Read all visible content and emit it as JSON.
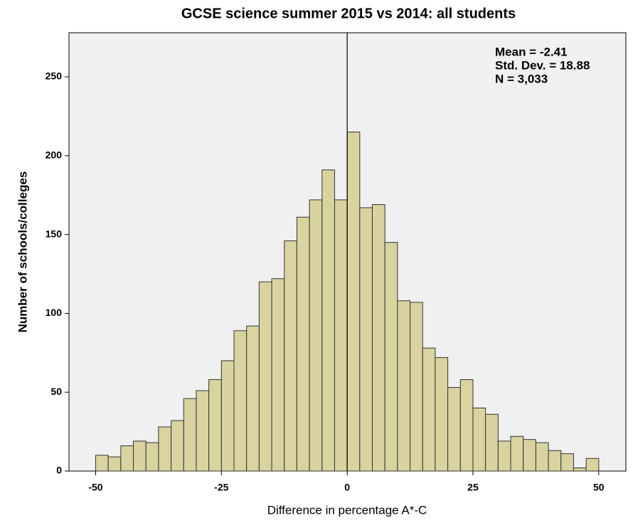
{
  "chart_data": {
    "type": "histogram",
    "title": "GCSE science summer 2015 vs 2014: all students",
    "x_label": "Difference in percentage A*-C",
    "y_label": "Number of schools/colleges",
    "annotations": [
      "Mean = -2.41",
      "Std. Dev. = 18.88",
      "N = 3,033"
    ],
    "bins": [
      -50,
      -47.5,
      -45,
      -42.5,
      -40,
      -37.5,
      -35,
      -32.5,
      -30,
      -27.5,
      -25,
      -22.5,
      -20,
      -17.5,
      -15,
      -12.5,
      -10,
      -7.5,
      -5,
      -2.5,
      0,
      2.5,
      5,
      7.5,
      10,
      12.5,
      15,
      17.5,
      20,
      22.5,
      25,
      27.5,
      30,
      32.5,
      35,
      37.5,
      40,
      42.5,
      45,
      47.5,
      50
    ],
    "values": [
      10,
      9,
      16,
      19,
      18,
      28,
      32,
      46,
      51,
      58,
      70,
      89,
      92,
      120,
      122,
      146,
      161,
      172,
      191,
      172,
      215,
      167,
      169,
      145,
      108,
      107,
      78,
      72,
      53,
      58,
      40,
      36,
      19,
      22,
      20,
      18,
      13,
      11,
      2,
      8
    ],
    "color": "#d9d3a0",
    "background": "#f0f0f0",
    "reference_line": 0,
    "xlim": [
      -55.3,
      55.4
    ],
    "xticks": [
      -50,
      -25,
      0,
      25,
      50
    ],
    "ylim": [
      0,
      278
    ],
    "yticks": [
      0,
      50,
      100,
      150,
      200,
      250
    ]
  }
}
